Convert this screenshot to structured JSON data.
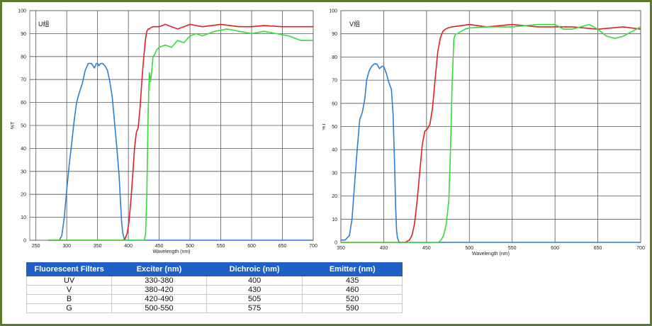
{
  "colors": {
    "frame": "#5b7a2c",
    "blue": "#2a7fd4",
    "red": "#e02020",
    "green": "#33dd33",
    "table_header": "#1f5fc6"
  },
  "chart_data": [
    {
      "type": "line",
      "title": "U组",
      "xlabel": "Wavelength (nm)",
      "ylabel": "%T",
      "xlim": [
        240,
        700
      ],
      "ylim": [
        0,
        100
      ],
      "xticks": [
        250,
        300,
        350,
        400,
        450,
        500,
        550,
        600,
        650,
        700
      ],
      "yticks": [
        0,
        10,
        20,
        30,
        40,
        50,
        60,
        70,
        80,
        90,
        100
      ],
      "grid": true,
      "series": [
        {
          "color": "#2a7fd4",
          "x": [
            270,
            288,
            292,
            296,
            300,
            304,
            308,
            312,
            316,
            320,
            325,
            330,
            335,
            340,
            345,
            348,
            350,
            352,
            355,
            358,
            362,
            366,
            370,
            374,
            378,
            382,
            385,
            387,
            389,
            391,
            393,
            396,
            700
          ],
          "y": [
            0,
            0,
            2,
            10,
            22,
            33,
            42,
            52,
            60,
            64,
            68,
            74,
            77,
            77,
            75,
            77,
            77,
            76,
            77,
            77,
            76,
            74,
            69,
            62,
            50,
            38,
            28,
            18,
            8,
            3,
            1,
            0,
            0
          ]
        },
        {
          "color": "#e02020",
          "x": [
            270,
            392,
            395,
            398,
            401,
            404,
            407,
            410,
            413,
            416,
            419,
            422,
            425,
            428,
            430,
            432,
            434,
            436,
            440,
            450,
            460,
            470,
            480,
            490,
            500,
            520,
            550,
            580,
            600,
            620,
            650,
            670,
            700
          ],
          "y": [
            0,
            0,
            1,
            3,
            8,
            17,
            28,
            40,
            47,
            49,
            58,
            70,
            80,
            88,
            91,
            92,
            92,
            92.5,
            93,
            93,
            94,
            93,
            92,
            93,
            94,
            93,
            94,
            93,
            93,
            93.5,
            93,
            93,
            93
          ]
        },
        {
          "color": "#33dd33",
          "x": [
            270,
            426,
            428,
            430,
            432,
            434,
            436,
            438,
            440,
            443,
            446,
            450,
            460,
            470,
            480,
            490,
            500,
            510,
            520,
            540,
            560,
            580,
            600,
            620,
            640,
            660,
            680,
            700
          ],
          "y": [
            0,
            0,
            3,
            20,
            55,
            73,
            69,
            74,
            80,
            81,
            83,
            84,
            85,
            84,
            87,
            86,
            89,
            90,
            89,
            91,
            92,
            91,
            90,
            91,
            90,
            89,
            87,
            87
          ]
        }
      ]
    },
    {
      "type": "line",
      "title": "V组",
      "xlabel": "Wavelength (nm)",
      "ylabel": "%T",
      "xlim": [
        350,
        700
      ],
      "ylim": [
        0,
        100
      ],
      "xticks": [
        350,
        400,
        450,
        500,
        550,
        600,
        650,
        700
      ],
      "yticks": [
        0,
        10,
        20,
        30,
        40,
        50,
        60,
        70,
        80,
        90,
        100
      ],
      "grid": true,
      "series": [
        {
          "color": "#2a7fd4",
          "x": [
            350,
            355,
            360,
            363,
            366,
            369,
            372,
            375,
            378,
            380,
            383,
            386,
            389,
            392,
            395,
            398,
            400,
            403,
            406,
            409,
            411,
            413,
            414,
            415,
            416,
            418,
            420,
            700
          ],
          "y": [
            1,
            1,
            3,
            10,
            25,
            40,
            53,
            56,
            62,
            70,
            74,
            76,
            77,
            77,
            75,
            76,
            76,
            73,
            69,
            66,
            55,
            30,
            15,
            5,
            2,
            0,
            0,
            0
          ]
        },
        {
          "color": "#e02020",
          "x": [
            350,
            425,
            430,
            433,
            436,
            439,
            442,
            445,
            448,
            451,
            454,
            457,
            460,
            463,
            466,
            469,
            472,
            475,
            480,
            500,
            520,
            550,
            580,
            600,
            620,
            650,
            680,
            700
          ],
          "y": [
            0,
            0,
            1,
            3,
            8,
            18,
            30,
            42,
            48,
            49,
            51,
            58,
            70,
            82,
            88,
            91,
            92,
            92.5,
            93,
            94,
            93,
            94,
            93,
            93,
            93,
            92,
            93,
            92
          ]
        },
        {
          "color": "#33dd33",
          "x": [
            350,
            464,
            467,
            470,
            473,
            476,
            478,
            480,
            482,
            484,
            486,
            490,
            495,
            500,
            520,
            550,
            580,
            600,
            610,
            620,
            630,
            640,
            650,
            660,
            670,
            680,
            690,
            700
          ],
          "y": [
            0,
            0,
            1,
            3,
            8,
            18,
            40,
            70,
            88,
            90,
            90,
            91,
            92,
            92.5,
            93,
            93,
            94,
            94,
            92,
            92,
            93,
            94,
            92,
            89,
            88,
            89,
            91,
            93
          ]
        }
      ]
    }
  ],
  "table": {
    "headers": [
      "Fluorescent Filters",
      "Exciter (nm)",
      "Dichroic (nm)",
      "Emitter (nm)"
    ],
    "rows": [
      [
        "UV",
        "330-380",
        "400",
        "435"
      ],
      [
        "V",
        "380-420",
        "430",
        "460"
      ],
      [
        "B",
        "420-490",
        "505",
        "520"
      ],
      [
        "G",
        "500-550",
        "575",
        "590"
      ]
    ]
  }
}
